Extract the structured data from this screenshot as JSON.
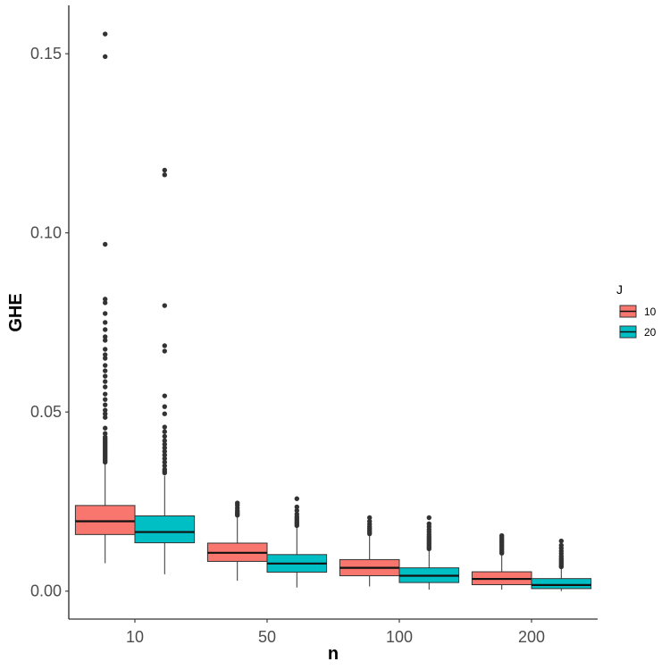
{
  "chart_data": {
    "type": "boxplot",
    "title": "",
    "xlabel": "n",
    "ylabel": "GHE",
    "ylim": [
      -0.0078,
      0.1635
    ],
    "y_ticks": [
      0.0,
      0.05,
      0.1,
      0.15
    ],
    "y_tick_labels": [
      "0.00",
      "0.05",
      "0.10",
      "0.15"
    ],
    "categories": [
      "10",
      "50",
      "100",
      "200"
    ],
    "legend": {
      "title": "J",
      "placement": "right",
      "entries": [
        {
          "label": "10",
          "color": "#F8766D"
        },
        {
          "label": "20",
          "color": "#00BFC4"
        }
      ]
    },
    "series": [
      {
        "name": "10",
        "color": "#F8766D",
        "boxes": [
          {
            "category": "10",
            "whisker_low": 0.0078,
            "q1": 0.0158,
            "median": 0.0195,
            "q3": 0.0239,
            "whisker_high": 0.0357,
            "outliers": [
              0.036,
              0.0365,
              0.037,
              0.0375,
              0.038,
              0.0385,
              0.039,
              0.0395,
              0.04,
              0.0405,
              0.041,
              0.0415,
              0.042,
              0.0425,
              0.043,
              0.044,
              0.0455,
              0.0485,
              0.0495,
              0.0505,
              0.052,
              0.0535,
              0.055,
              0.057,
              0.0585,
              0.06,
              0.0615,
              0.063,
              0.065,
              0.066,
              0.0675,
              0.07,
              0.071,
              0.073,
              0.075,
              0.0775,
              0.0805,
              0.0815,
              0.0968,
              0.1492,
              0.1555
            ]
          },
          {
            "category": "50",
            "whisker_low": 0.0029,
            "q1": 0.0083,
            "median": 0.0107,
            "q3": 0.0134,
            "whisker_high": 0.021,
            "outliers": [
              0.0212,
              0.0216,
              0.022,
              0.0225,
              0.0232,
              0.024,
              0.0246
            ]
          },
          {
            "category": "100",
            "whisker_low": 0.0013,
            "q1": 0.0043,
            "median": 0.0065,
            "q3": 0.0088,
            "whisker_high": 0.0155,
            "outliers": [
              0.016,
              0.0165,
              0.017,
              0.0175,
              0.018,
              0.0187,
              0.0195,
              0.0205
            ]
          },
          {
            "category": "200",
            "whisker_low": 0.0004,
            "q1": 0.0018,
            "median": 0.0034,
            "q3": 0.0054,
            "whisker_high": 0.0103,
            "outliers": [
              0.0106,
              0.011,
              0.0115,
              0.012,
              0.0125,
              0.013,
              0.0135,
              0.014,
              0.0145,
              0.015,
              0.0155
            ]
          }
        ]
      },
      {
        "name": "20",
        "color": "#00BFC4",
        "boxes": [
          {
            "category": "10",
            "whisker_low": 0.0047,
            "q1": 0.0135,
            "median": 0.0165,
            "q3": 0.021,
            "whisker_high": 0.0322,
            "outliers": [
              0.033,
              0.0335,
              0.034,
              0.035,
              0.036,
              0.037,
              0.038,
              0.039,
              0.04,
              0.041,
              0.042,
              0.0432,
              0.0445,
              0.0458,
              0.0495,
              0.0515,
              0.0545,
              0.067,
              0.0685,
              0.0797,
              0.1162,
              0.1175
            ]
          },
          {
            "category": "50",
            "whisker_low": 0.001,
            "q1": 0.0053,
            "median": 0.0077,
            "q3": 0.0102,
            "whisker_high": 0.018,
            "outliers": [
              0.0183,
              0.0188,
              0.0193,
              0.0198,
              0.0203,
              0.0208,
              0.0215,
              0.0225,
              0.0235,
              0.0258
            ]
          },
          {
            "category": "100",
            "whisker_low": 0.0004,
            "q1": 0.0024,
            "median": 0.0043,
            "q3": 0.0065,
            "whisker_high": 0.0115,
            "outliers": [
              0.0118,
              0.0122,
              0.0127,
              0.0132,
              0.0137,
              0.0142,
              0.0147,
              0.0152,
              0.0158,
              0.0165,
              0.0172,
              0.018,
              0.0188,
              0.0205
            ]
          },
          {
            "category": "200",
            "whisker_low": 0.0,
            "q1": 0.0007,
            "median": 0.0017,
            "q3": 0.0035,
            "whisker_high": 0.0065,
            "outliers": [
              0.0068,
              0.0072,
              0.0077,
              0.0082,
              0.0087,
              0.0092,
              0.0098,
              0.0105,
              0.0112,
              0.012,
              0.0128,
              0.014
            ]
          }
        ]
      }
    ]
  }
}
